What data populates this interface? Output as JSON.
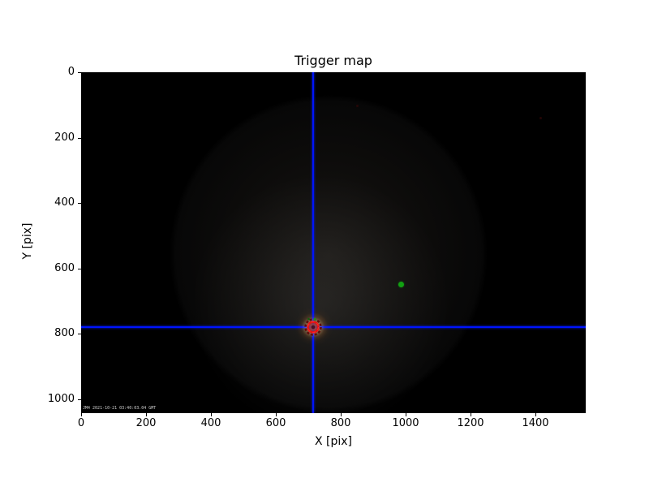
{
  "figure": {
    "background_color": "#ffffff",
    "image_area_color": "#000000"
  },
  "chart_data": {
    "type": "heatmap",
    "title": "Trigger map",
    "xlabel": "X [pix]",
    "ylabel": "Y [pix]",
    "xlim": [
      0,
      1555
    ],
    "ylim": [
      0,
      1042
    ],
    "y_axis_inverted_downward": true,
    "x_ticks": [
      0,
      200,
      400,
      600,
      800,
      1000,
      1200,
      1400
    ],
    "y_ticks": [
      0,
      200,
      400,
      600,
      800,
      1000
    ],
    "grid": false,
    "legend": "none",
    "image_background": {
      "description": "dark night-sky camera frame with faint circular vignette glow and bright warm halo at trigger position",
      "glow_center": {
        "x": 762,
        "y": 556
      },
      "glow_radius_pix": 480
    },
    "crosshair": {
      "x": 716,
      "y": 778,
      "color": "#0014ff"
    },
    "trigger_marker": {
      "x": 716,
      "y": 778,
      "ring_color": "#e61111",
      "dark_ring_color": "#5f0808",
      "fill_color": "#8c0f14",
      "inner_spot_color": "#3a0b18",
      "green_speck_color": "#1f8f1f",
      "dark_green_speck_color": "#0e5c0e",
      "halo_color": "#ffd7a5"
    },
    "detections": [
      {
        "x": 985,
        "y": 648,
        "color": "#12a012",
        "label": "green-point"
      }
    ],
    "faint_specks": [
      {
        "x": 850,
        "y": 102,
        "color": "#2a0606"
      },
      {
        "x": 1415,
        "y": 141,
        "color": "#2a0606"
      }
    ],
    "overlay_text": "JM4 2021-10-21 03:40:03.04 GMT"
  }
}
